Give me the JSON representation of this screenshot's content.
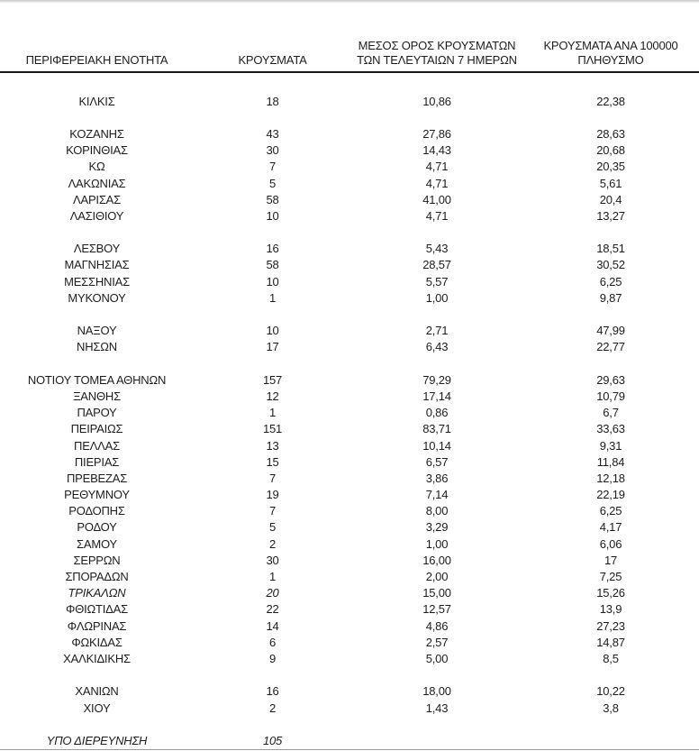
{
  "colors": {
    "text": "#1d1d1d",
    "header_rule": "#161616",
    "bottom_thin_rule": "#9a9a9a",
    "bottom_thick_rule": "#1b1b1b",
    "top_edge": "#c7c7c7"
  },
  "table": {
    "columns": [
      {
        "label": "ΠΕΡΙΦΕΡΕΙΑΚΗ ΕΝΟΤΗΤΑ"
      },
      {
        "label": "ΚΡΟΥΣΜΑΤΑ"
      },
      {
        "label": "ΜΕΣΟΣ ΟΡΟΣ ΚΡΟΥΣΜΑΤΩΝ\nΤΩΝ ΤΕΛΕΥΤΑΙΩΝ 7 ΗΜΕΡΩΝ"
      },
      {
        "label": "ΚΡΟΥΣΜΑΤΑ ΑΝΑ 100000\nΠΛΗΘΥΣΜΟ"
      }
    ],
    "rows": [
      {
        "name": "ΚΙΛΚΙΣ",
        "cases": "18",
        "avg7": "10,86",
        "per100k": "22,38"
      },
      {
        "spacer": true
      },
      {
        "name": "ΚΟΖΑΝΗΣ",
        "cases": "43",
        "avg7": "27,86",
        "per100k": "28,63"
      },
      {
        "name": "ΚΟΡΙΝΘΙΑΣ",
        "cases": "30",
        "avg7": "14,43",
        "per100k": "20,68"
      },
      {
        "name": "ΚΩ",
        "cases": "7",
        "avg7": "4,71",
        "per100k": "20,35"
      },
      {
        "name": "ΛΑΚΩΝΙΑΣ",
        "cases": "5",
        "avg7": "4,71",
        "per100k": "5,61"
      },
      {
        "name": "ΛΑΡΙΣΑΣ",
        "cases": "58",
        "avg7": "41,00",
        "per100k": "20,4"
      },
      {
        "name": "ΛΑΣΙΘΙΟΥ",
        "cases": "10",
        "avg7": "4,71",
        "per100k": "13,27"
      },
      {
        "spacer": true
      },
      {
        "name": "ΛΕΣΒΟΥ",
        "cases": "16",
        "avg7": "5,43",
        "per100k": "18,51"
      },
      {
        "name": "ΜΑΓΝΗΣΙΑΣ",
        "cases": "58",
        "avg7": "28,57",
        "per100k": "30,52"
      },
      {
        "name": "ΜΕΣΣΗΝΙΑΣ",
        "cases": "10",
        "avg7": "5,57",
        "per100k": "6,25"
      },
      {
        "name": "ΜΥΚΟΝΟΥ",
        "cases": "1",
        "avg7": "1,00",
        "per100k": "9,87"
      },
      {
        "spacer": true
      },
      {
        "name": "ΝΑΞΟΥ",
        "cases": "10",
        "avg7": "2,71",
        "per100k": "47,99"
      },
      {
        "name": "ΝΗΣΩΝ",
        "cases": "17",
        "avg7": "6,43",
        "per100k": "22,77"
      },
      {
        "spacer": true
      },
      {
        "name": "ΝΟΤΙΟΥ ΤΟΜΕΑ ΑΘΗΝΩΝ",
        "cases": "157",
        "avg7": "79,29",
        "per100k": "29,63"
      },
      {
        "name": "ΞΑΝΘΗΣ",
        "cases": "12",
        "avg7": "17,14",
        "per100k": "10,79"
      },
      {
        "name": "ΠΑΡΟΥ",
        "cases": "1",
        "avg7": "0,86",
        "per100k": "6,7"
      },
      {
        "name": "ΠΕΙΡΑΙΩΣ",
        "cases": "151",
        "avg7": "83,71",
        "per100k": "33,63"
      },
      {
        "name": "ΠΕΛΛΑΣ",
        "cases": "13",
        "avg7": "10,14",
        "per100k": "9,31"
      },
      {
        "name": "ΠΙΕΡΙΑΣ",
        "cases": "15",
        "avg7": "6,57",
        "per100k": "11,84"
      },
      {
        "name": "ΠΡΕΒΕΖΑΣ",
        "cases": "7",
        "avg7": "3,86",
        "per100k": "12,18"
      },
      {
        "name": "ΡΕΘΥΜΝΟΥ",
        "cases": "19",
        "avg7": "7,14",
        "per100k": "22,19"
      },
      {
        "name": "ΡΟΔΟΠΗΣ",
        "cases": "7",
        "avg7": "8,00",
        "per100k": "6,25"
      },
      {
        "name": "ΡΟΔΟΥ",
        "cases": "5",
        "avg7": "3,29",
        "per100k": "4,17"
      },
      {
        "name": "ΣΑΜΟΥ",
        "cases": "2",
        "avg7": "1,00",
        "per100k": "6,06"
      },
      {
        "name": "ΣΕΡΡΩΝ",
        "cases": "30",
        "avg7": "16,00",
        "per100k": "17"
      },
      {
        "name": "ΣΠΟΡΑΔΩΝ",
        "cases": "1",
        "avg7": "2,00",
        "per100k": "7,25"
      },
      {
        "name": "ΤΡΙΚΑΛΩΝ",
        "cases": "20",
        "avg7": "15,00",
        "per100k": "15,26",
        "italic": true
      },
      {
        "name": "ΦΘΙΩΤΙΔΑΣ",
        "cases": "22",
        "avg7": "12,57",
        "per100k": "13,9"
      },
      {
        "name": "ΦΛΩΡΙΝΑΣ",
        "cases": "14",
        "avg7": "4,86",
        "per100k": "27,23"
      },
      {
        "name": "ΦΩΚΙΔΑΣ",
        "cases": "6",
        "avg7": "2,57",
        "per100k": "14,87"
      },
      {
        "name": "ΧΑΛΚΙΔΙΚΗΣ",
        "cases": "9",
        "avg7": "5,00",
        "per100k": "8,5"
      },
      {
        "spacer": true
      },
      {
        "name": "ΧΑΝΙΩΝ",
        "cases": "16",
        "avg7": "18,00",
        "per100k": "10,22"
      },
      {
        "name": "ΧΙΟΥ",
        "cases": "2",
        "avg7": "1,43",
        "per100k": "3,8"
      },
      {
        "spacer": true
      },
      {
        "name": "ΥΠΟ ΔΙΕΡΕΥΝΗΣΗ",
        "cases": "105",
        "avg7": "",
        "per100k": "",
        "italic": true
      }
    ]
  }
}
